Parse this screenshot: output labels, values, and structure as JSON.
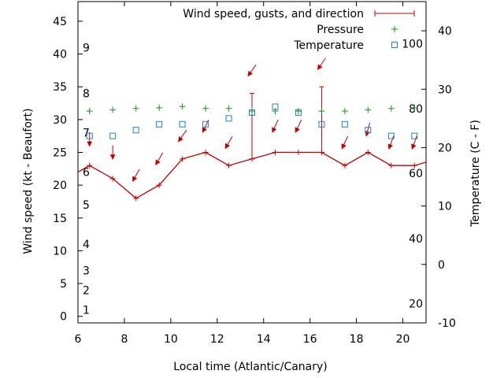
{
  "chart_data": {
    "type": "line",
    "xlabel": "Local time (Atlantic/Canary)",
    "ylabel": "Wind speed (kt - Beaufort)",
    "y2label": "Temperature (C - F)",
    "xlim": [
      6,
      21
    ],
    "ylim": [
      -1,
      48
    ],
    "y2lim": [
      -10,
      45
    ],
    "x_ticks": [
      6,
      8,
      10,
      12,
      14,
      16,
      18,
      20
    ],
    "y_ticks": [
      0,
      5,
      10,
      15,
      20,
      25,
      30,
      35,
      40,
      45
    ],
    "y2_ticks": [
      -10,
      0,
      10,
      20,
      30,
      40
    ],
    "beaufort_labels": [
      {
        "label": "1",
        "kt": 1
      },
      {
        "label": "2",
        "kt": 4
      },
      {
        "label": "3",
        "kt": 7
      },
      {
        "label": "4",
        "kt": 11
      },
      {
        "label": "5",
        "kt": 17
      },
      {
        "label": "6",
        "kt": 22
      },
      {
        "label": "7",
        "kt": 28
      },
      {
        "label": "8",
        "kt": 34
      },
      {
        "label": "9",
        "kt": 41
      }
    ],
    "fahrenheit_labels": [
      {
        "label": "20",
        "celsius": -6.7
      },
      {
        "label": "40",
        "celsius": 4.4
      },
      {
        "label": "60",
        "celsius": 15.6
      },
      {
        "label": "80",
        "celsius": 26.7
      },
      {
        "label": "100",
        "celsius": 37.8
      }
    ],
    "legend_position": "top-right",
    "series": [
      {
        "name": "Wind speed, gusts, and direction",
        "axis": "left",
        "x": [
          6,
          6.5,
          7.5,
          8.5,
          9.5,
          10.5,
          11.5,
          12.5,
          13.5,
          14.5,
          15.5,
          16.5,
          17.5,
          18.5,
          19.5,
          20.5,
          21
        ],
        "values": [
          22,
          23,
          21,
          18,
          20,
          24,
          25,
          23,
          24,
          25,
          25,
          25,
          23,
          25,
          23,
          23,
          23.5
        ],
        "gusts": [
          {
            "x": 13.5,
            "value": 34
          },
          {
            "x": 16.5,
            "value": 35
          }
        ],
        "directions": [
          {
            "x": 6.5,
            "y": 27,
            "direction_deg": 0
          },
          {
            "x": 7.5,
            "y": 25,
            "direction_deg": 0
          },
          {
            "x": 8.5,
            "y": 21.5,
            "direction_deg": 30
          },
          {
            "x": 9.5,
            "y": 24,
            "direction_deg": 30
          },
          {
            "x": 10.5,
            "y": 27.5,
            "direction_deg": 35
          },
          {
            "x": 11.5,
            "y": 29,
            "direction_deg": 25
          },
          {
            "x": 12.5,
            "y": 26.5,
            "direction_deg": 30
          },
          {
            "x": 13.5,
            "y": 37.5,
            "direction_deg": 35
          },
          {
            "x": 14.5,
            "y": 29,
            "direction_deg": 25
          },
          {
            "x": 15.5,
            "y": 29,
            "direction_deg": 25
          },
          {
            "x": 16.5,
            "y": 38.5,
            "direction_deg": 35
          },
          {
            "x": 17.5,
            "y": 26.5,
            "direction_deg": 25
          },
          {
            "x": 18.5,
            "y": 28.5,
            "direction_deg": 15
          },
          {
            "x": 19.5,
            "y": 26.5,
            "direction_deg": 20
          },
          {
            "x": 20.5,
            "y": 26.5,
            "direction_deg": 20
          }
        ]
      },
      {
        "name": "Pressure",
        "axis": "left",
        "x": [
          6.5,
          7.5,
          8.5,
          9.5,
          10.5,
          11.5,
          12.5,
          13.5,
          14.5,
          15.5,
          16.5,
          17.5,
          18.5,
          19.5,
          20.5
        ],
        "values": [
          31.3,
          31.5,
          31.7,
          31.8,
          32,
          31.7,
          31.7,
          31.3,
          31.3,
          31.3,
          31.3,
          31.3,
          31.5,
          31.7,
          31.8
        ]
      },
      {
        "name": "Temperature",
        "axis": "right",
        "x": [
          6.5,
          7.5,
          8.5,
          9.5,
          10.5,
          11.5,
          12.5,
          13.5,
          14.5,
          15.5,
          16.5,
          17.5,
          18.5,
          19.5,
          20.5
        ],
        "values": [
          22,
          22,
          23,
          24,
          24,
          24,
          25,
          26,
          27,
          26,
          24,
          24,
          23,
          22,
          22
        ]
      }
    ]
  },
  "colors": {
    "wind": "#c00000",
    "pressure": "#119911",
    "temperature": "#1f82c8"
  }
}
